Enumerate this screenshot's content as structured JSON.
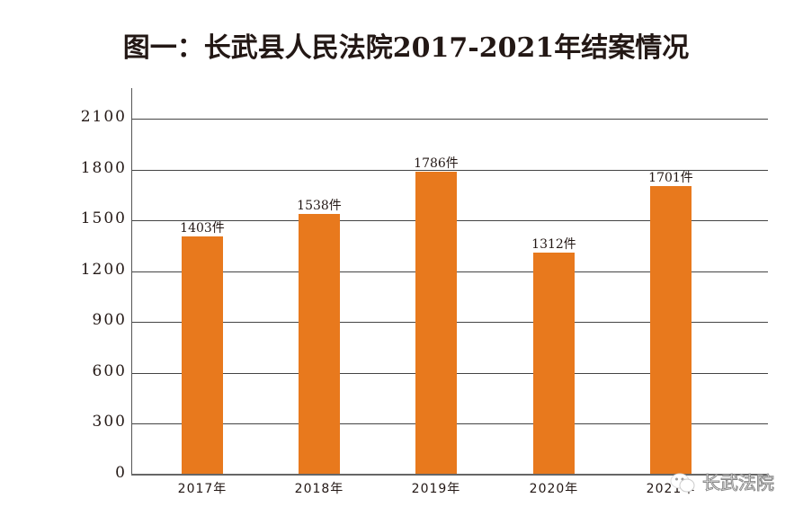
{
  "chart_data": {
    "type": "bar",
    "title": "图一：长武县人民法院2017-2021年结案情况",
    "xlabel": "",
    "ylabel": "",
    "categories": [
      "2017年",
      "2018年",
      "2019年",
      "2020年",
      "2021年"
    ],
    "values": [
      1403,
      1538,
      1786,
      1312,
      1701
    ],
    "value_labels": [
      "1403件",
      "1538件",
      "1786件",
      "1312件",
      "1701件"
    ],
    "ylim": [
      0,
      2100
    ],
    "yticks": [
      "0",
      "300",
      "600",
      "900",
      "1200",
      "1500",
      "1800",
      "2100"
    ],
    "grid": true,
    "legend": null,
    "bar_color": "#E8791D"
  },
  "watermark": {
    "text": "长武法院"
  }
}
